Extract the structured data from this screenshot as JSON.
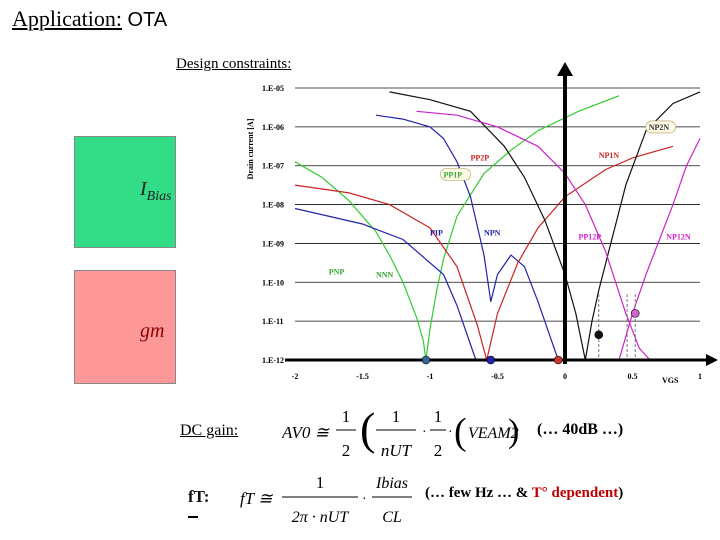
{
  "slide": {
    "title_prefix": "Application:",
    "title_subject": "OTA",
    "constraints_label": "Design constraints:",
    "ibias_main": "I",
    "ibias_sub": "Bias",
    "gm_label": "gm",
    "dc_gain_label": "DC gain:",
    "dc_gain_note": "(… 40dB …)",
    "ft_label": "fT:",
    "ft_note_black": "(… few Hz …  &",
    "ft_note_red": "T° dependent",
    "ft_note_close": ")",
    "box_colors": {
      "green": "#33dd88",
      "red": "#ff9999"
    }
  },
  "formulas": {
    "av_lhs": "AV0 ≅",
    "one": "1",
    "two": "2",
    "nut": "nUT",
    "vea": "VEAM2",
    "ft_lhs": "fT ≅",
    "two_pi_nut": "2π · nUT",
    "ibias": "Ibias",
    "cl": "CL"
  },
  "chart_data": {
    "type": "line",
    "ylabel": "Drain current [A]",
    "xlabel": "VGS",
    "xlim": [
      -2,
      1
    ],
    "ylim_log10": [
      -12,
      -5
    ],
    "x_ticks": [
      "-2",
      "-1.5",
      "-1",
      "-0.5",
      "0",
      "0.5",
      "1"
    ],
    "y_ticks": [
      "1.E-05",
      "1.E-06",
      "1.E-07",
      "1.E-08",
      "1.E-09",
      "1.E-10",
      "1.E-11",
      "1.E-12"
    ],
    "series": [
      {
        "name": "PNP",
        "color": "#33cc33",
        "x": [
          -2,
          -1.8,
          -1.6,
          -1.4,
          -1.3,
          -1.2,
          -1.1,
          -1.05,
          -1.03
        ],
        "y": [
          -6.9,
          -7.3,
          -7.9,
          -8.7,
          -9.3,
          -10.0,
          -10.9,
          -11.5,
          -12.0
        ]
      },
      {
        "name": "PP1P",
        "color": "#33cc33",
        "x": [
          -1.03,
          -1.0,
          -0.95,
          -0.9,
          -0.8,
          -0.6,
          -0.4,
          -0.2,
          0.1,
          0.4
        ],
        "y": [
          -12.0,
          -11.2,
          -10.2,
          -9.4,
          -8.3,
          -7.2,
          -6.6,
          -6.1,
          -5.6,
          -5.2
        ]
      },
      {
        "name": "NNN",
        "color": "#2222aa",
        "x": [
          -2,
          -1.5,
          -1.2,
          -0.9,
          -0.8,
          -0.7,
          -0.66
        ],
        "y": [
          -8.1,
          -8.5,
          -8.9,
          -9.8,
          -10.6,
          -11.6,
          -12.0
        ]
      },
      {
        "name": "PIP",
        "color": "#2222aa",
        "x": [
          -1.4,
          -1.2,
          -1.0,
          -0.9,
          -0.8,
          -0.7,
          -0.6,
          -0.55
        ],
        "y": [
          -5.7,
          -5.8,
          -6.0,
          -6.3,
          -6.9,
          -7.8,
          -9.3,
          -10.5
        ]
      },
      {
        "name": "NPN",
        "color": "#2222aa",
        "x": [
          -0.55,
          -0.5,
          -0.4,
          -0.3,
          -0.2,
          -0.1,
          -0.05
        ],
        "y": [
          -10.5,
          -9.8,
          -9.3,
          -9.6,
          -10.5,
          -11.5,
          -12.0
        ]
      },
      {
        "name": "PP2P",
        "color": "#cc2222",
        "x": [
          -2,
          -1.6,
          -1.3,
          -1.0,
          -0.8,
          -0.65,
          -0.58
        ],
        "y": [
          -7.5,
          -7.7,
          -8.0,
          -8.6,
          -9.6,
          -11.1,
          -12.0
        ]
      },
      {
        "name": "NP1N",
        "color": "#cc2222",
        "x": [
          -0.58,
          -0.5,
          -0.35,
          -0.2,
          0.0,
          0.3,
          0.5,
          0.8
        ],
        "y": [
          -12.0,
          -10.8,
          -9.5,
          -8.6,
          -7.8,
          -7.1,
          -6.8,
          -6.5
        ]
      },
      {
        "name": "NP2N",
        "color": "#111111",
        "x": [
          -1.3,
          -1.0,
          -0.7,
          -0.45,
          -0.3,
          -0.15,
          0.0,
          0.08,
          0.15,
          0.2,
          0.25,
          0.45,
          0.6,
          0.8,
          1.0
        ],
        "y": [
          -5.1,
          -5.3,
          -5.6,
          -6.5,
          -7.3,
          -8.4,
          -9.8,
          -10.8,
          -12.0,
          -11.0,
          -10.2,
          -7.5,
          -6.1,
          -5.4,
          -5.1
        ]
      },
      {
        "name": "PP12P",
        "color": "#cc22cc",
        "x": [
          -1.1,
          -0.8,
          -0.5,
          -0.2,
          0.0,
          0.15,
          0.3,
          0.45,
          0.55,
          0.63
        ],
        "y": [
          -5.6,
          -5.7,
          -6.0,
          -6.5,
          -7.2,
          -8.0,
          -9.2,
          -10.8,
          -11.7,
          -12.0
        ]
      },
      {
        "name": "NP12N",
        "color": "#cc22cc",
        "x": [
          0.4,
          0.5,
          0.6,
          0.7,
          0.8,
          0.9,
          1.0
        ],
        "y": [
          -12.0,
          -10.8,
          -9.8,
          -8.9,
          -8.0,
          -7.0,
          -6.3
        ]
      }
    ],
    "annotations": [
      {
        "text": "NP2N",
        "x": 0.62,
        "y": -6.08,
        "color": "#333",
        "boxed": true
      },
      {
        "text": "NP1N",
        "x": 0.25,
        "y": -6.8,
        "color": "#cc2222"
      },
      {
        "text": "PP2P",
        "x": -0.7,
        "y": -6.86,
        "color": "#cc2222"
      },
      {
        "text": "PP1P",
        "x": -0.9,
        "y": -7.3,
        "color": "#33aa33",
        "boxed": true
      },
      {
        "text": "PIP",
        "x": -1.0,
        "y": -8.8,
        "color": "#2222aa"
      },
      {
        "text": "NPN",
        "x": -0.6,
        "y": -8.8,
        "color": "#2222aa"
      },
      {
        "text": "PP12P",
        "x": 0.1,
        "y": -8.9,
        "color": "#cc22cc"
      },
      {
        "text": "NP12N",
        "x": 0.75,
        "y": -8.9,
        "color": "#cc22cc"
      },
      {
        "text": "PNP",
        "x": -1.75,
        "y": -9.8,
        "color": "#33aa33"
      },
      {
        "text": "NNN",
        "x": -1.4,
        "y": -9.88,
        "color": "#33aa33"
      }
    ],
    "markers": [
      {
        "x": -1.03,
        "y": -12.0,
        "color": "#336699"
      },
      {
        "x": -0.55,
        "y": -12.0,
        "color": "#2222aa"
      },
      {
        "x": -0.05,
        "y": -12.0,
        "color": "#cc3333"
      },
      {
        "x": 0.25,
        "y": -11.35,
        "color": "#111111"
      },
      {
        "x": 0.52,
        "y": -10.8,
        "color": "#cc66cc"
      }
    ],
    "dashed_x": [
      0.25,
      0.46,
      0.52
    ]
  }
}
